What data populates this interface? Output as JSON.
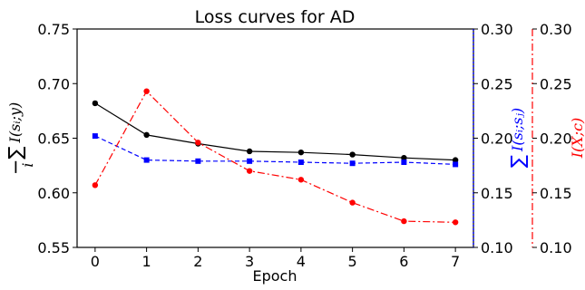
{
  "chart_data": {
    "type": "line",
    "title": "Loss curves for AD",
    "xlabel": "Epoch",
    "x": [
      0,
      1,
      2,
      3,
      4,
      5,
      6,
      7
    ],
    "xlim": [
      -0.35,
      7.35
    ],
    "grid": false,
    "y_axes": [
      {
        "id": "left",
        "label": "−∑I(sᵢ;y)",
        "label_main": "−∑",
        "label_sub": "i",
        "label_expr": "I(sᵢ;y)",
        "ylim": [
          0.55,
          0.75
        ],
        "ticks": [
          0.55,
          0.6,
          0.65,
          0.7,
          0.75
        ],
        "tick_labels": [
          "0.55",
          "0.60",
          "0.65",
          "0.70",
          "0.75"
        ],
        "color": "#000000"
      },
      {
        "id": "right1",
        "label": "∑I(sᵢ;sⱼ)",
        "label_main": "∑",
        "label_expr": "I(sᵢ;sⱼ)",
        "ylim": [
          0.1,
          0.3
        ],
        "ticks": [
          0.1,
          0.15,
          0.2,
          0.25,
          0.3
        ],
        "tick_labels": [
          "0.10",
          "0.15",
          "0.20",
          "0.25",
          "0.30"
        ],
        "color": "#0000ff"
      },
      {
        "id": "right2",
        "label": "I(X;c)",
        "ylim": [
          0.1,
          0.3
        ],
        "ticks": [
          0.1,
          0.15,
          0.2,
          0.25,
          0.3
        ],
        "tick_labels": [
          "0.10",
          "0.15",
          "0.20",
          "0.25",
          "0.30"
        ],
        "color": "#ff0000"
      }
    ],
    "series": [
      {
        "axis": "left",
        "color": "#000000",
        "linestyle": "solid",
        "marker": "circle",
        "values": [
          0.682,
          0.653,
          0.645,
          0.638,
          0.637,
          0.635,
          0.632,
          0.63
        ]
      },
      {
        "axis": "right1",
        "color": "#0000ff",
        "linestyle": "dashed",
        "marker": "square",
        "values": [
          0.202,
          0.18,
          0.179,
          0.179,
          0.178,
          0.177,
          0.178,
          0.176
        ]
      },
      {
        "axis": "right2",
        "color": "#ff0000",
        "linestyle": "dashdot",
        "marker": "circle",
        "values": [
          0.157,
          0.243,
          0.196,
          0.17,
          0.162,
          0.141,
          0.124,
          0.123
        ]
      }
    ]
  }
}
